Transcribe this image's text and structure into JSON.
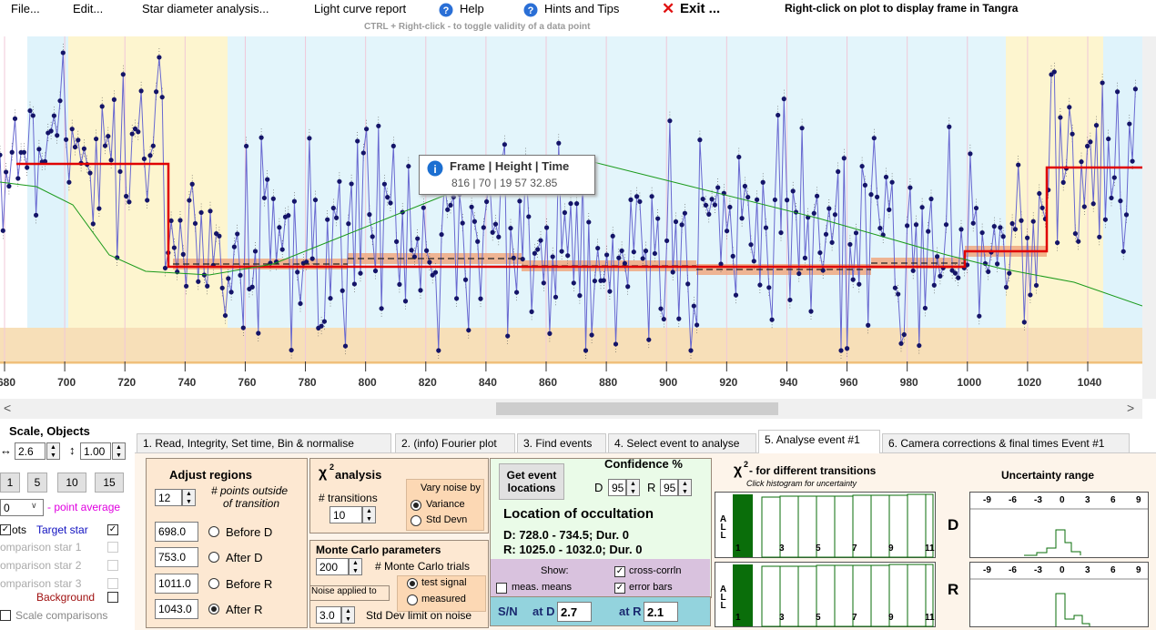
{
  "menu": {
    "file": "File...",
    "edit": "Edit...",
    "star": "Star diameter analysis...",
    "report": "Light curve report",
    "help": "Help",
    "hints": "Hints and Tips",
    "exit": "Exit ...",
    "note": "Right-click on plot to display frame in Tangra"
  },
  "plot": {
    "hint": "CTRL + Right-click  -  to toggle validity of a data point",
    "xticks": [
      680,
      700,
      720,
      740,
      760,
      780,
      800,
      820,
      840,
      860,
      880,
      900,
      920,
      940,
      960,
      980,
      1000,
      1020,
      1040
    ],
    "tooltip": {
      "title": "Frame | Height | Time",
      "text": "816 | 70 | 19 57 32.85"
    }
  },
  "left": {
    "title": "Scale,  Objects",
    "scale_x": "2.6",
    "scale_y": "1.00",
    "buttons": [
      "1",
      "5",
      "10",
      "15"
    ],
    "average": "0",
    "average_label": "- point average",
    "pts": "ots",
    "target": "Target star",
    "comparisons": [
      "omparison star 1",
      "omparison star 2",
      "omparison star 3"
    ],
    "background": "Background",
    "scale_comparisons": "Scale comparisons"
  },
  "tabs": [
    "1.  Read, Integrity, Set time, Bin & normalise",
    "2. (info)  Fourier plot",
    "3. Find events",
    "4. Select event to analyse",
    "5. Analyse event #1",
    "6. Camera corrections & final times Event #1"
  ],
  "adjust": {
    "title": "Adjust regions",
    "points": "12",
    "points_label": "# points outside",
    "points_label2": "of transition",
    "rows": [
      [
        "698.0",
        "Before D"
      ],
      [
        "753.0",
        "After D"
      ],
      [
        "1011.0",
        "Before R"
      ],
      [
        "1043.0",
        "After R"
      ]
    ]
  },
  "chi2": {
    "symbol": "χ",
    "power": "2",
    "title": " analysis",
    "transitions_label": "# transitions",
    "transitions": "10",
    "vary": "Vary noise by",
    "variance": "Variance",
    "stddev": "Std Devn"
  },
  "monte": {
    "title": "Monte Carlo parameters",
    "trials": "200",
    "trials_label": "# Monte Carlo trials",
    "test": "test signal",
    "measured": "measured",
    "noise": "Noise applied to",
    "limit": "3.0",
    "limit_label": "Std Dev limit on noise"
  },
  "event": {
    "button": "Get event locations",
    "confidence": "Confidence %",
    "d": "D",
    "d_conf": "95",
    "r": "R",
    "r_conf": "95",
    "location": "Location of occultation",
    "d_line": "D: 728.0 - 734.5; Dur. 0",
    "r_line": "R: 1025.0 - 1032.0; Dur. 0",
    "show": "Show:",
    "means": "meas. means",
    "corr": "cross-corrln",
    "errbars": "error bars",
    "sn": "S/N",
    "at_d": "at D",
    "sn_d": "2.7",
    "at_r": "at R",
    "sn_r": "2.1"
  },
  "hist": {
    "symbol": "χ",
    "power": "2",
    "title": " - for different transitions",
    "sub": "Click histogram for uncertainty",
    "all": "ALL",
    "labels": [
      "1",
      "3",
      "5",
      "7",
      "9",
      "11"
    ]
  },
  "uncert": {
    "title": "Uncertainty range",
    "ticks": [
      "-9",
      "-6",
      "-3",
      "0",
      "3",
      "6",
      "9"
    ],
    "d": "D",
    "r": "R"
  }
}
